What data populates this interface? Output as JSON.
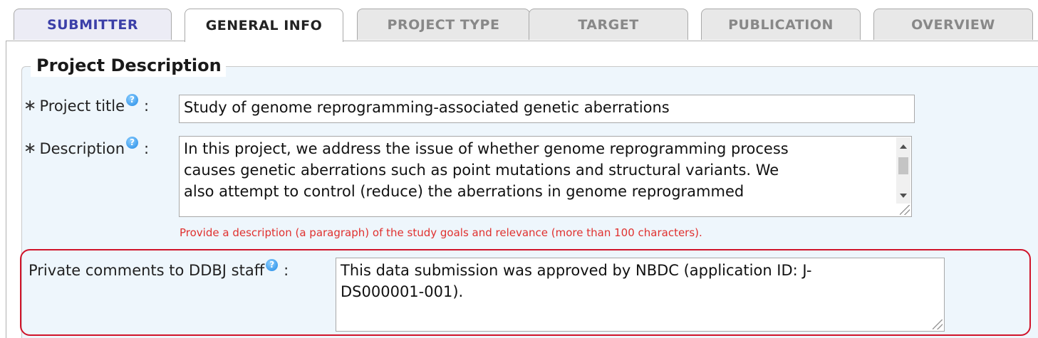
{
  "tabs": [
    {
      "label": "SUBMITTER"
    },
    {
      "label": "GENERAL INFO"
    },
    {
      "label": "PROJECT TYPE"
    },
    {
      "label": "TARGET"
    },
    {
      "label": "PUBLICATION"
    },
    {
      "label": "OVERVIEW"
    }
  ],
  "active_tab": "GENERAL INFO",
  "section": {
    "title": "Project Description"
  },
  "fields": {
    "title": {
      "required_mark": "∗",
      "label": "Project title",
      "colon": ":",
      "value": "Study of genome reprogramming-associated genetic aberrations"
    },
    "description": {
      "required_mark": "∗",
      "label": "Description",
      "colon": ":",
      "lines": [
        "In this project, we address the issue of whether genome reprogramming process",
        "causes genetic aberrations such as point mutations and structural variants. We",
        "also attempt to control (reduce) the aberrations in genome reprogrammed"
      ],
      "hint": "Provide a description (a paragraph) of the study goals and relevance (more than 100 characters)."
    },
    "private_comments": {
      "label": "Private comments to DDBJ staff",
      "colon": ":",
      "lines": [
        "This data submission was approved by NBDC (application ID: J-",
        "DS000001-001)."
      ]
    }
  },
  "icons": {
    "help": "question-circle-icon",
    "help_glyph": "?"
  },
  "colors": {
    "highlight_border": "#d0132a",
    "hint_text": "#e0312f",
    "panel_bg": "#eef6fc",
    "submitter_tab_text": "#3b3fa8"
  }
}
